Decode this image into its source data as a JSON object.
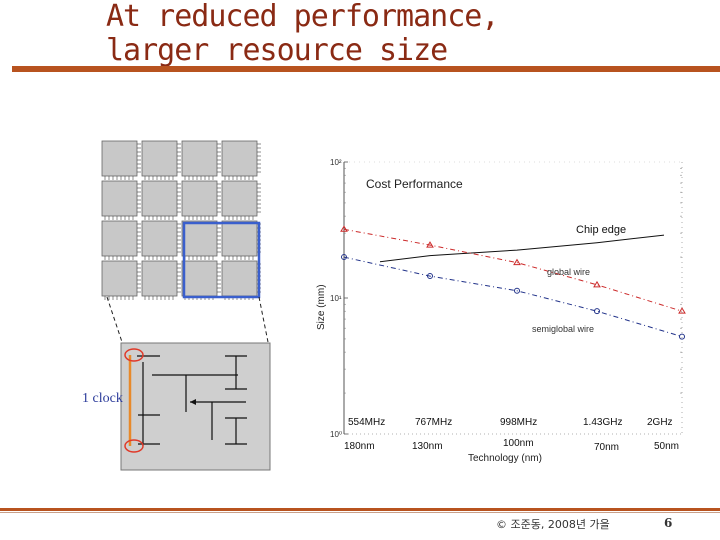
{
  "slide": {
    "title_line1": "At reduced performance,",
    "title_line2": "larger resource size",
    "footer": "© 조준동, 2008년 가을",
    "page_number": "6"
  },
  "colors": {
    "accent": "#b8531f",
    "title_text": "#8a2a14",
    "highlight_tile": "#3a5fcd",
    "clock_line": "#e8892a",
    "clock_marker": "#e03a2a",
    "global_wire": "#cc2a2a",
    "semiglobal_wire": "#22338a"
  },
  "diagram": {
    "clock_label": "1 clock"
  },
  "chart_data": {
    "type": "line",
    "title": "Cost Performance",
    "xlabel": "Technology (nm)",
    "ylabel": "Size (mm)",
    "y_scale": "log",
    "ylim": [
      1,
      100
    ],
    "y_tick_labels": [
      "10⁰",
      "10¹",
      "10²"
    ],
    "categories": [
      "180nm",
      "130nm",
      "100nm",
      "70nm",
      "50nm"
    ],
    "frequencies": [
      "554MHz",
      "767MHz",
      "998MHz",
      "1.43GHz",
      "2GHz"
    ],
    "grid": false,
    "series": [
      {
        "name": "Chip edge",
        "values": [
          18.5,
          20.5,
          22.5,
          25.5,
          29
        ]
      },
      {
        "name": "global wire",
        "values": [
          32,
          24.5,
          18.2,
          12.5,
          8
        ]
      },
      {
        "name": "semiglobal wire",
        "values": [
          20,
          14.5,
          11.3,
          8.0,
          5.2
        ]
      }
    ]
  }
}
